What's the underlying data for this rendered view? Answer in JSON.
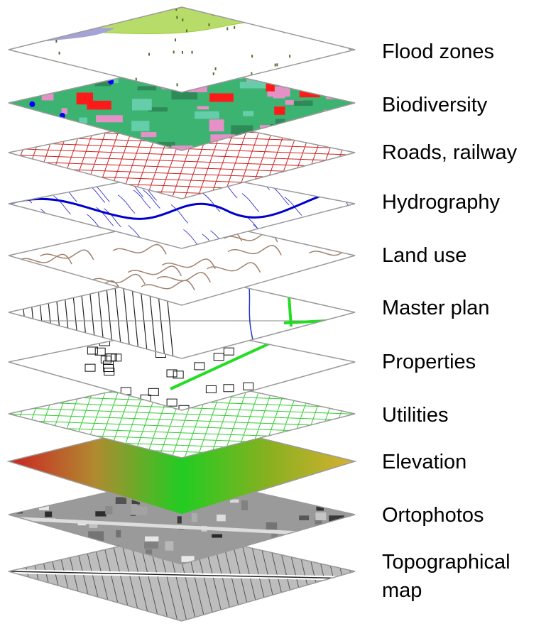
{
  "title": "",
  "layers": [
    {
      "id": "flood-zones",
      "label": "Flood zones",
      "fill": "#ffffff",
      "line": "#9acd32",
      "accent": "#a3a3d6",
      "pattern": "flood"
    },
    {
      "id": "biodiversity",
      "label": "Biodiversity",
      "fill": "#3cb371",
      "line": "#ff1a1a",
      "accent": "#e690c8",
      "pattern": "bio"
    },
    {
      "id": "roads-railway",
      "label": "Roads, railway",
      "fill": "#ffffff",
      "line": "#cc2222",
      "accent": "#cc2222",
      "pattern": "grid"
    },
    {
      "id": "hydrography",
      "label": "Hydrography",
      "fill": "#ffffff",
      "line": "#1a1acc",
      "accent": "#0000cc",
      "pattern": "river"
    },
    {
      "id": "land-use",
      "label": "Land use",
      "fill": "#ffffff",
      "line": "#a0826d",
      "accent": "#a0826d",
      "pattern": "contour"
    },
    {
      "id": "master-plan",
      "label": "Master plan",
      "fill": "#ffffff",
      "line": "#111111",
      "accent": "#22dd22",
      "pattern": "plan"
    },
    {
      "id": "properties",
      "label": "Properties",
      "fill": "#ffffff",
      "line": "#111111",
      "accent": "#22dd22",
      "pattern": "props"
    },
    {
      "id": "utilities",
      "label": "Utilities",
      "fill": "#ffffff",
      "line": "#33cc33",
      "accent": "#33cc33",
      "pattern": "grid"
    },
    {
      "id": "elevation",
      "label": "Elevation",
      "fill": "#c8a020",
      "line": "#22cc22",
      "accent": "#dd2222",
      "pattern": "elev"
    },
    {
      "id": "ortophotos",
      "label": "Ortophotos",
      "fill": "#9a9a9a",
      "line": "#333333",
      "accent": "#e0e0e0",
      "pattern": "photo"
    },
    {
      "id": "topographical-map",
      "label": "Topographical map",
      "fill": "#bdbdbd",
      "line": "#222222",
      "accent": "#ffffff",
      "pattern": "topo"
    }
  ]
}
